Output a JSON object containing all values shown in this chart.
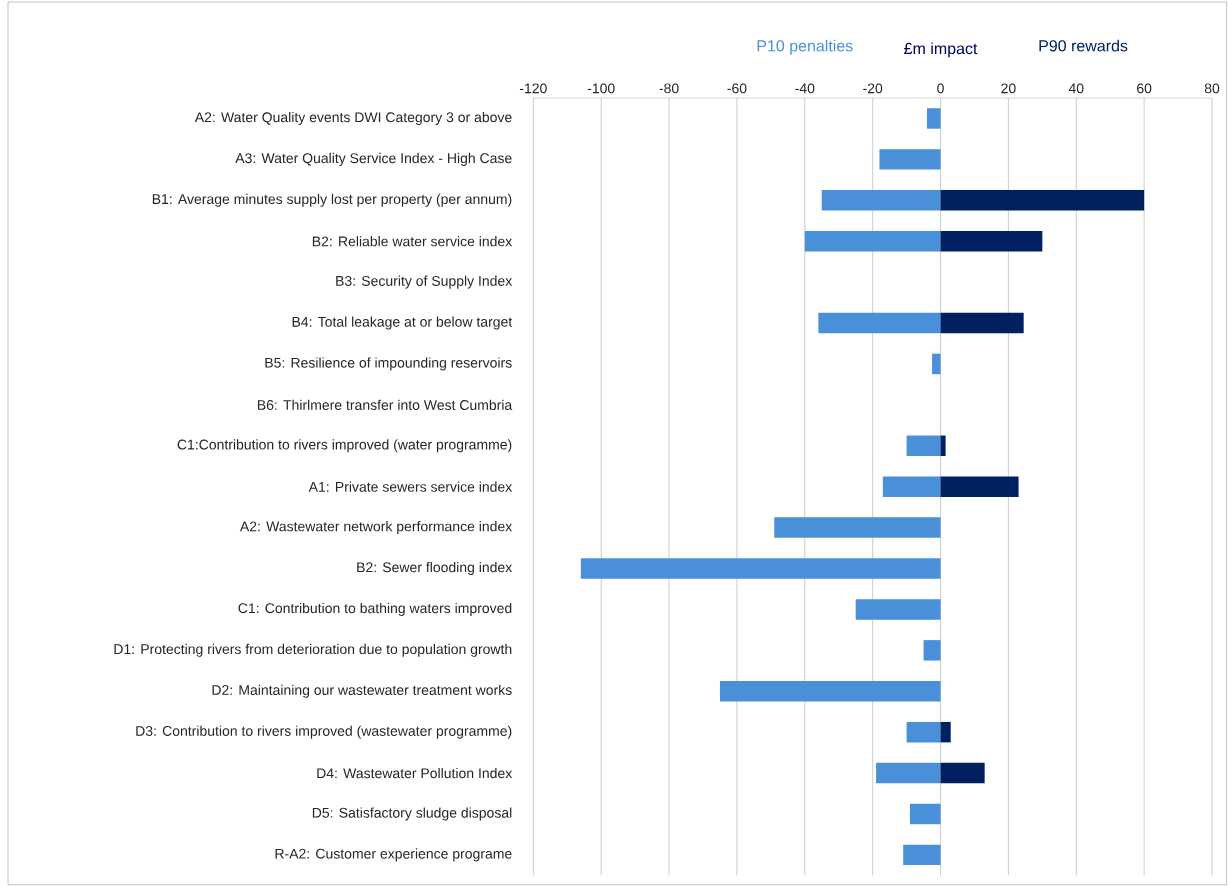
{
  "chart_data": {
    "type": "bar",
    "orientation": "horizontal",
    "xlabel": "£m impact",
    "categories": [
      "A2: Water Quality events DWI Category 3 or above",
      "A3: Water Quality Service Index - High Case",
      "B1: Average minutes supply lost per property (per annum)",
      "B2: Reliable water service index",
      "B3: Security of Supply Index",
      "B4: Total leakage at or below target",
      "B5: Resilience of impounding reservoirs",
      "B6: Thirlmere transfer into West Cumbria",
      "C1:Contribution to rivers improved (water programme)",
      "A1: Private sewers service index",
      "A2: Wastewater network performance index",
      "B2: Sewer flooding index",
      "C1: Contribution to bathing waters improved",
      "D1: Protecting rivers from deterioration due to population growth",
      "D2: Maintaining our wastewater treatment works",
      "D3: Contribution to rivers improved (wastewater programme)",
      "D4: Wastewater Pollution Index",
      "D5: Satisfactory sludge disposal",
      "R-A2: Customer experience programe"
    ],
    "series": [
      {
        "name": "P10 penalties",
        "color": "#4a90d9",
        "values": [
          -4,
          -18,
          -35,
          -40,
          null,
          -36,
          -2.5,
          null,
          -10,
          -17,
          -49,
          -106,
          -25,
          -5,
          -65,
          -10,
          -19,
          -9,
          -11
        ]
      },
      {
        "name": "P90 rewards",
        "color": "#002060",
        "values": [
          null,
          null,
          60,
          30,
          null,
          24.5,
          null,
          null,
          1.5,
          23,
          null,
          null,
          null,
          null,
          null,
          3,
          13,
          null,
          null
        ]
      }
    ],
    "xlim": [
      -120,
      80
    ],
    "xticks": [
      -120,
      -100,
      -80,
      -60,
      -40,
      -20,
      0,
      20,
      40,
      60,
      80
    ],
    "grid": "x"
  }
}
